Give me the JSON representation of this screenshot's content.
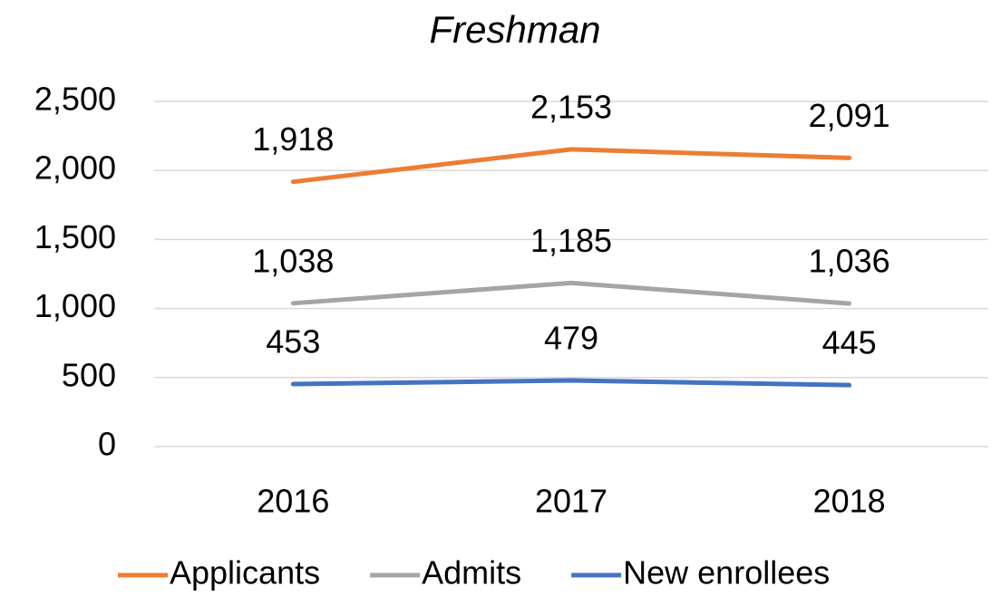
{
  "chart_data": {
    "type": "line",
    "title": "Freshman",
    "categories": [
      "2016",
      "2017",
      "2018"
    ],
    "series": [
      {
        "name": "Applicants",
        "color": "#ed7d31",
        "values": [
          1918,
          2153,
          2091
        ],
        "value_labels": [
          "1,918",
          "2,153",
          "2,091"
        ]
      },
      {
        "name": "Admits",
        "color": "#a5a5a5",
        "values": [
          1038,
          1185,
          1036
        ],
        "value_labels": [
          "1,038",
          "1,185",
          "1,036"
        ]
      },
      {
        "name": "New enrollees",
        "color": "#4472c4",
        "values": [
          453,
          479,
          445
        ],
        "value_labels": [
          "453",
          "479",
          "445"
        ]
      }
    ],
    "ylim": [
      0,
      2500
    ],
    "yticks": [
      0,
      500,
      {
        "value": 1000,
        "label": "1,000"
      },
      {
        "value": 1500,
        "label": "1,500"
      },
      {
        "value": 2000,
        "label": "2,000"
      },
      {
        "value": 2500,
        "label": "2,500"
      }
    ],
    "grid": true,
    "legend": "bottom"
  }
}
